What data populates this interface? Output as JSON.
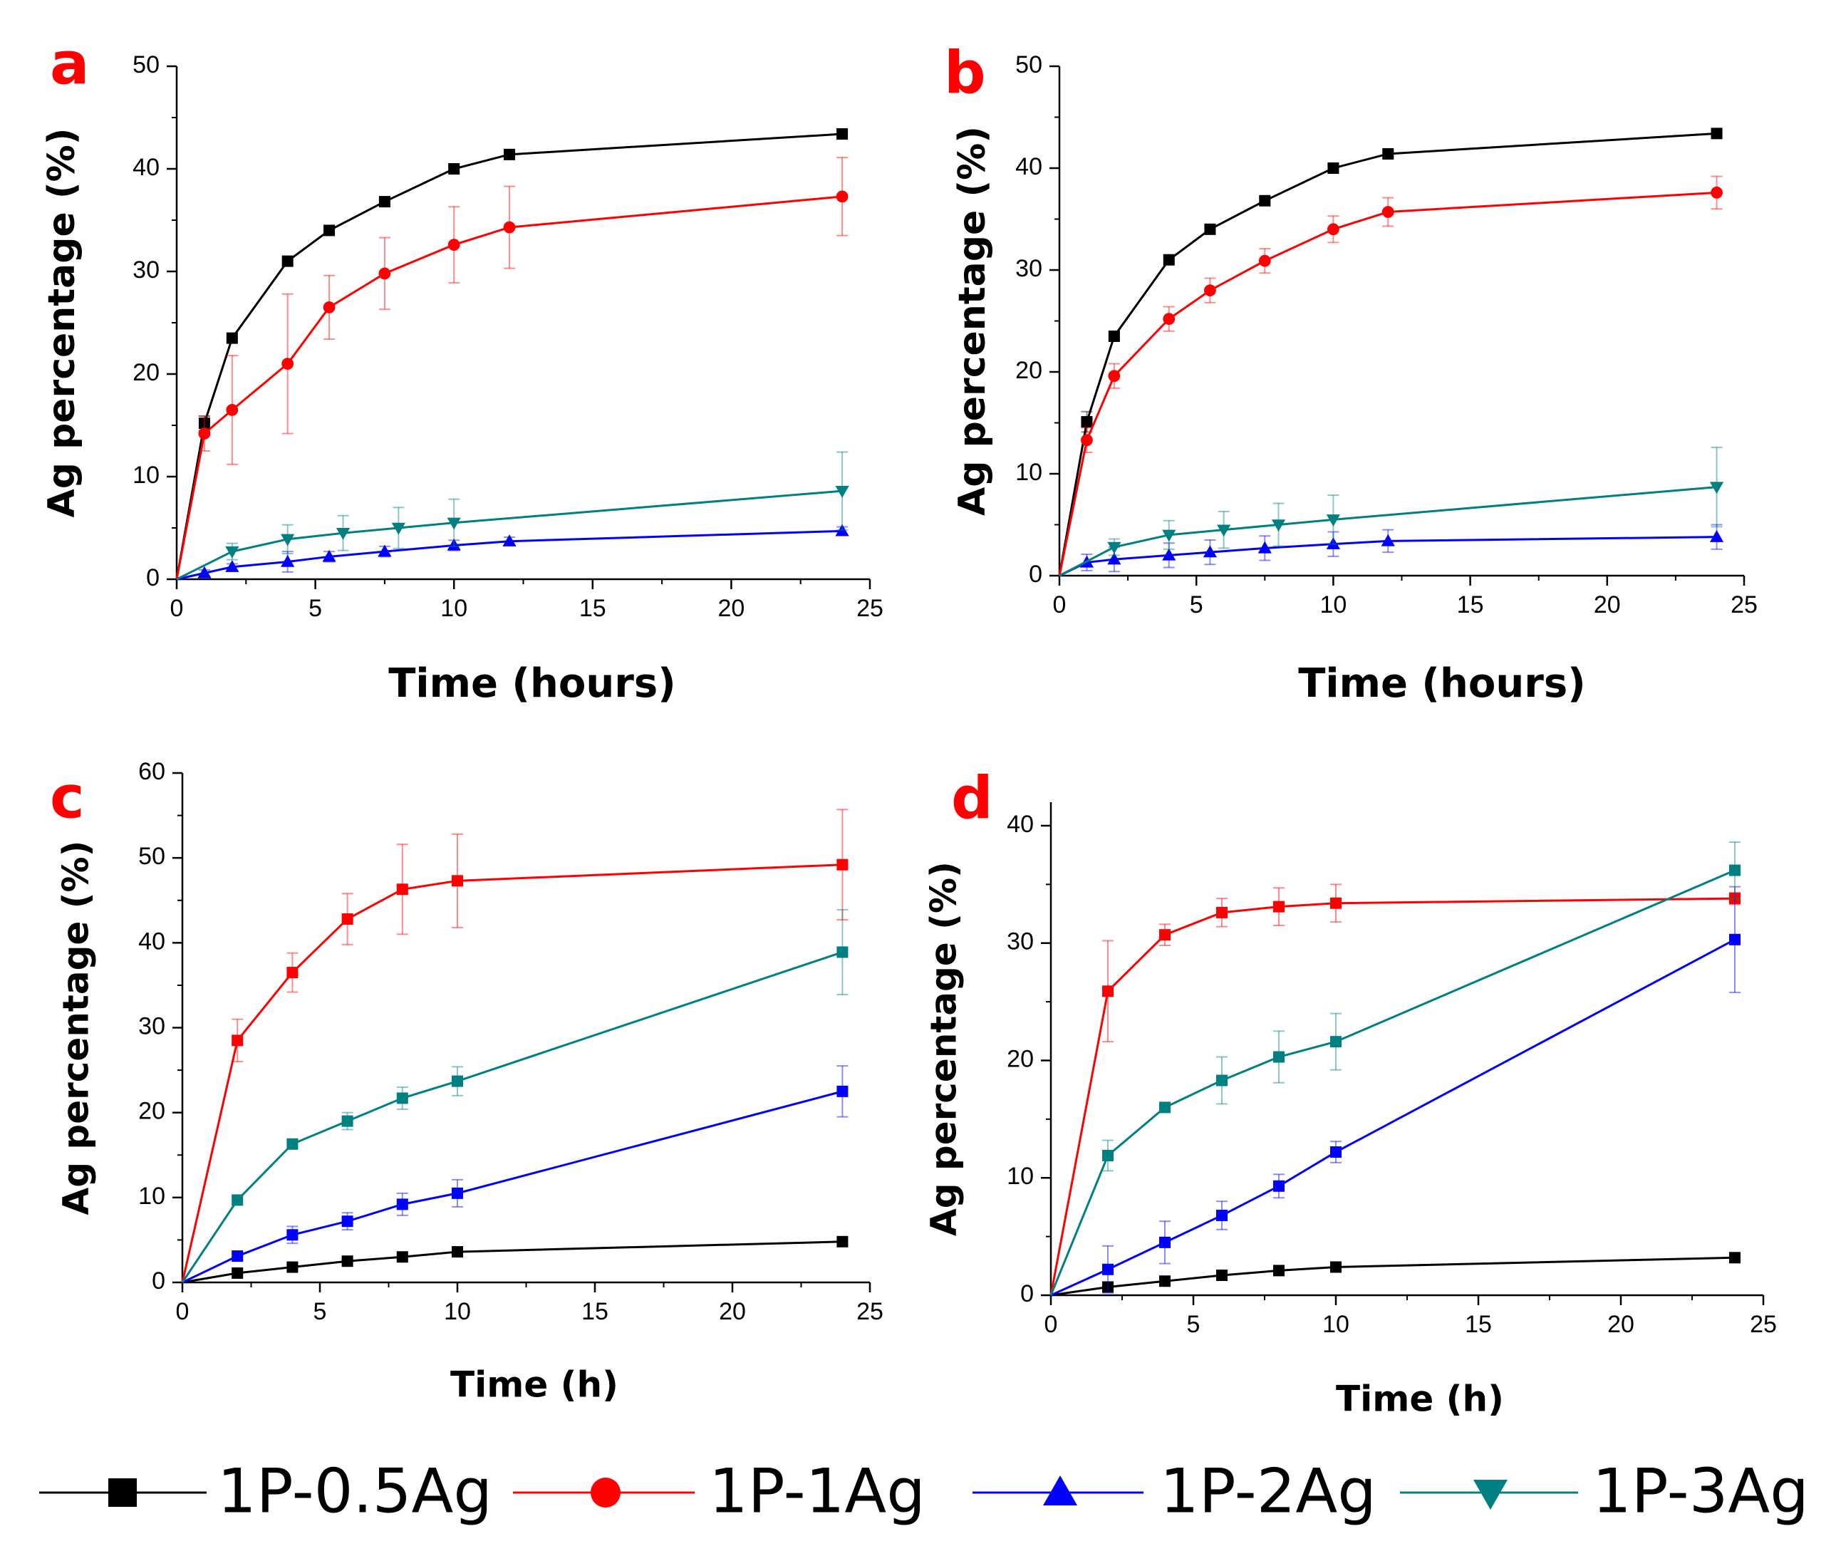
{
  "colors": {
    "1P-0.5Ag": "#000000",
    "1P-1Ag": "#ff0000",
    "1P-2Ag": "#0000ff",
    "1P-3Ag": "#008080",
    "label": "#ff0000"
  },
  "legend": [
    {
      "name": "1P-0.5Ag",
      "marker": "square-icon"
    },
    {
      "name": "1P-1Ag",
      "marker": "circle-icon"
    },
    {
      "name": "1P-2Ag",
      "marker": "triangle-up-icon"
    },
    {
      "name": "1P-3Ag",
      "marker": "triangle-down-icon"
    }
  ],
  "chart_data": [
    {
      "panel": "a",
      "type": "line",
      "xlabel": "Time (hours)",
      "ylabel": "Ag percentage (%)",
      "xlim": [
        0,
        25
      ],
      "ylim": [
        0,
        50
      ],
      "xticks": [
        0,
        5,
        10,
        15,
        20,
        25
      ],
      "yticks": [
        0,
        10,
        20,
        30,
        40,
        50
      ],
      "series": [
        {
          "name": "1P-0.5Ag",
          "marker": "square",
          "x": [
            0,
            1,
            2,
            4,
            5.5,
            7.5,
            10,
            12,
            24
          ],
          "y": [
            0,
            15.2,
            23.5,
            31,
            34,
            36.8,
            40,
            41.4,
            43.4
          ],
          "err": [
            0,
            0.7,
            0.4,
            0.4,
            0.3,
            0.3,
            0.3,
            0.3,
            0.3
          ]
        },
        {
          "name": "1P-1Ag",
          "marker": "circle",
          "x": [
            0,
            1,
            2,
            4,
            5.5,
            7.5,
            10,
            12,
            24
          ],
          "y": [
            0,
            14.2,
            16.5,
            21,
            26.5,
            29.8,
            32.6,
            34.3,
            37.3
          ],
          "err": [
            0,
            1.7,
            5.3,
            6.8,
            3.1,
            3.5,
            3.7,
            4.0,
            3.8
          ]
        },
        {
          "name": "1P-2Ag",
          "marker": "triangle-up",
          "x": [
            0,
            1,
            2,
            4,
            5.5,
            7.5,
            10,
            12,
            24
          ],
          "y": [
            0,
            0.6,
            1.2,
            1.7,
            2.2,
            2.7,
            3.3,
            3.7,
            4.7
          ],
          "err": [
            0,
            0.3,
            0.3,
            1.0,
            0.5,
            0.5,
            0.5,
            0.4,
            0.4
          ]
        },
        {
          "name": "1P-3Ag",
          "marker": "triangle-down",
          "x": [
            0,
            2,
            4,
            6,
            8,
            10,
            24
          ],
          "y": [
            0,
            2.7,
            3.9,
            4.5,
            5.0,
            5.5,
            8.6
          ],
          "err": [
            0,
            0.8,
            1.4,
            1.7,
            2.0,
            2.3,
            3.8
          ]
        }
      ]
    },
    {
      "panel": "b",
      "type": "line",
      "xlabel": "Time (hours)",
      "ylabel": "Ag percentage (%)",
      "xlim": [
        0,
        25
      ],
      "ylim": [
        0,
        50
      ],
      "xticks": [
        0,
        5,
        10,
        15,
        20,
        25
      ],
      "yticks": [
        0,
        10,
        20,
        30,
        40,
        50
      ],
      "series": [
        {
          "name": "1P-0.5Ag",
          "marker": "square",
          "x": [
            0,
            1,
            2,
            4,
            5.5,
            7.5,
            10,
            12,
            24
          ],
          "y": [
            0,
            15.1,
            23.5,
            31,
            34,
            36.8,
            40,
            41.4,
            43.4
          ],
          "err": [
            0,
            1.0,
            0.4,
            0.4,
            0.3,
            0.3,
            0.3,
            0.3,
            0.3
          ]
        },
        {
          "name": "1P-1Ag",
          "marker": "circle",
          "x": [
            0,
            1,
            2,
            4,
            5.5,
            7.5,
            10,
            12,
            24
          ],
          "y": [
            0,
            13.3,
            19.6,
            25.2,
            28,
            30.9,
            34,
            35.7,
            37.6
          ],
          "err": [
            0,
            1.2,
            1.2,
            1.2,
            1.2,
            1.2,
            1.3,
            1.4,
            1.6
          ]
        },
        {
          "name": "1P-2Ag",
          "marker": "triangle-up",
          "x": [
            0,
            1,
            2,
            4,
            5.5,
            7.5,
            10,
            12,
            24
          ],
          "y": [
            0,
            1.3,
            1.6,
            2.0,
            2.3,
            2.7,
            3.1,
            3.4,
            3.8
          ],
          "err": [
            0,
            0.8,
            1.2,
            1.2,
            1.2,
            1.2,
            1.2,
            1.1,
            1.2
          ]
        },
        {
          "name": "1P-3Ag",
          "marker": "triangle-down",
          "x": [
            0,
            2,
            4,
            6,
            8,
            10,
            24
          ],
          "y": [
            0,
            2.8,
            4.0,
            4.5,
            5.0,
            5.5,
            8.7
          ],
          "err": [
            0,
            0.8,
            1.4,
            1.8,
            2.1,
            2.4,
            3.9
          ]
        }
      ]
    },
    {
      "panel": "c",
      "type": "line",
      "xlabel": "Time (h)",
      "ylabel": "Ag percentage (%)",
      "xlim": [
        0,
        25
      ],
      "ylim": [
        0,
        60
      ],
      "xticks": [
        0,
        5,
        10,
        15,
        20,
        25
      ],
      "yticks": [
        0,
        10,
        20,
        30,
        40,
        50,
        60
      ],
      "series": [
        {
          "name": "1P-0.5Ag",
          "marker": "square",
          "x": [
            0,
            2,
            4,
            6,
            8,
            10,
            24
          ],
          "y": [
            0,
            1.1,
            1.8,
            2.5,
            3.0,
            3.6,
            4.8
          ],
          "err": [
            0,
            0.3,
            0.3,
            0.3,
            0.3,
            0.3,
            0.3
          ]
        },
        {
          "name": "1P-1Ag",
          "marker": "square",
          "x": [
            0,
            2,
            4,
            6,
            8,
            10,
            24
          ],
          "y": [
            0,
            28.5,
            36.5,
            42.8,
            46.3,
            47.3,
            49.2
          ],
          "err": [
            0,
            2.5,
            2.3,
            3.0,
            5.3,
            5.5,
            6.5
          ]
        },
        {
          "name": "1P-2Ag",
          "marker": "square",
          "x": [
            0,
            2,
            4,
            6,
            8,
            10,
            24
          ],
          "y": [
            0,
            3.1,
            5.6,
            7.2,
            9.2,
            10.5,
            22.5
          ],
          "err": [
            0,
            0.5,
            1.0,
            1.0,
            1.3,
            1.6,
            3.0
          ]
        },
        {
          "name": "1P-3Ag",
          "marker": "square",
          "x": [
            0,
            2,
            4,
            6,
            8,
            10,
            24
          ],
          "y": [
            0,
            9.7,
            16.3,
            19.0,
            21.7,
            23.7,
            38.9
          ],
          "err": [
            0,
            0.5,
            0.5,
            1.0,
            1.3,
            1.7,
            5.0
          ]
        }
      ]
    },
    {
      "panel": "d",
      "type": "line",
      "xlabel": "Time (h)",
      "ylabel": "Ag percentage (%)",
      "xlim": [
        0,
        25
      ],
      "ylim": [
        0,
        42
      ],
      "xticks": [
        0,
        5,
        10,
        15,
        20,
        25
      ],
      "yticks": [
        0,
        10,
        20,
        30,
        40
      ],
      "series": [
        {
          "name": "1P-0.5Ag",
          "marker": "square",
          "x": [
            0,
            2,
            4,
            6,
            8,
            10,
            24
          ],
          "y": [
            0,
            0.7,
            1.2,
            1.7,
            2.1,
            2.4,
            3.2
          ],
          "err": [
            0,
            0.2,
            0.2,
            0.2,
            0.2,
            0.2,
            0.2
          ]
        },
        {
          "name": "1P-1Ag",
          "marker": "square",
          "x": [
            0,
            2,
            4,
            6,
            8,
            10,
            24
          ],
          "y": [
            0,
            25.9,
            30.7,
            32.6,
            33.1,
            33.4,
            33.8
          ],
          "err": [
            0,
            4.3,
            0.9,
            1.2,
            1.6,
            1.6,
            0.5
          ]
        },
        {
          "name": "1P-2Ag",
          "marker": "square",
          "x": [
            0,
            2,
            4,
            6,
            8,
            10,
            24
          ],
          "y": [
            0,
            2.2,
            4.5,
            6.8,
            9.3,
            12.2,
            30.3
          ],
          "err": [
            0,
            2.0,
            1.8,
            1.2,
            1.0,
            0.9,
            4.5
          ]
        },
        {
          "name": "1P-3Ag",
          "marker": "square",
          "x": [
            0,
            2,
            4,
            6,
            8,
            10,
            24
          ],
          "y": [
            0,
            11.9,
            16.0,
            18.3,
            20.3,
            21.6,
            36.2
          ],
          "err": [
            0,
            1.3,
            0.4,
            2.0,
            2.2,
            2.4,
            2.4
          ]
        }
      ]
    }
  ]
}
